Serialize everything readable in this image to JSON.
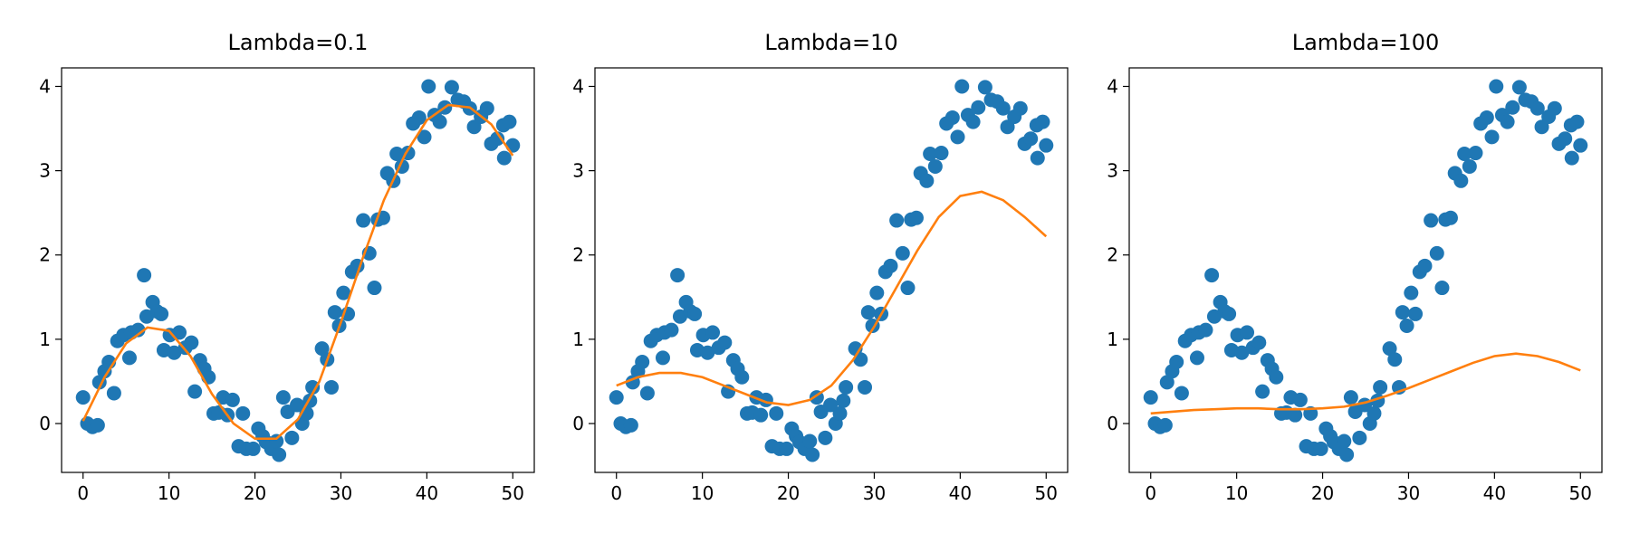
{
  "chart_data": [
    {
      "type": "scatter",
      "title": "Lambda=0.1",
      "color": "#1f77b4",
      "line_color": "#ff7f0e",
      "x": [
        0,
        0.5,
        1.1,
        1.7,
        1.9,
        2.5,
        3,
        3.6,
        4,
        4.7,
        5.4,
        5.6,
        6.4,
        7.1,
        7.4,
        8.1,
        8.6,
        9.1,
        9.4,
        10.1,
        10.6,
        11.2,
        11.9,
        12.6,
        13,
        13.6,
        14.1,
        14.6,
        15.2,
        15.8,
        16.3,
        16.8,
        17.4,
        18.1,
        18.6,
        19,
        19.8,
        20.4,
        20.9,
        21.3,
        21.9,
        22.5,
        22.8,
        23.3,
        23.8,
        24.3,
        24.9,
        25.5,
        26,
        26.4,
        26.7,
        27.8,
        28.4,
        28.9,
        29.3,
        29.8,
        30.3,
        30.8,
        31.3,
        31.9,
        32.6,
        33.3,
        33.9,
        34.3,
        34.9,
        35.4,
        36.1,
        36.5,
        37.1,
        37.8,
        38.4,
        39.1,
        39.7,
        40.2,
        40.9,
        41.5,
        42.1,
        42.9,
        43.6,
        44.3,
        45,
        45.5,
        46.3,
        47,
        47.5,
        48.2,
        48.9,
        49,
        49.6,
        50
      ],
      "values": [
        0.31,
        0,
        -0.04,
        -0.02,
        0.49,
        0.62,
        0.73,
        0.36,
        0.98,
        1.05,
        0.78,
        1.08,
        1.11,
        1.76,
        1.27,
        1.44,
        1.33,
        1.3,
        0.87,
        1.05,
        0.84,
        1.08,
        0.9,
        0.96,
        0.38,
        0.75,
        0.65,
        0.55,
        0.12,
        0.13,
        0.31,
        0.1,
        0.28,
        -0.27,
        0.12,
        -0.3,
        -0.3,
        -0.06,
        -0.15,
        -0.22,
        -0.3,
        -0.21,
        -0.37,
        0.31,
        0.14,
        -0.17,
        0.22,
        0,
        0.12,
        0.27,
        0.43,
        0.89,
        0.76,
        0.43,
        1.32,
        1.16,
        1.55,
        1.3,
        1.8,
        1.87,
        2.41,
        2.02,
        1.61,
        2.42,
        2.44,
        2.97,
        2.88,
        3.2,
        3.05,
        3.21,
        3.56,
        3.63,
        3.4,
        4,
        3.66,
        3.58,
        3.75,
        3.99,
        3.84,
        3.82,
        3.74,
        3.52,
        3.64,
        3.74,
        3.32,
        3.38,
        3.54,
        3.15,
        3.58,
        3.3
      ],
      "line_x": [
        0,
        2.5,
        5,
        7.5,
        10,
        12.5,
        15,
        17.5,
        20,
        22.5,
        25,
        27.5,
        30,
        32.5,
        35,
        37.5,
        40,
        42.5,
        45,
        47.5,
        50
      ],
      "line_values": [
        0.03,
        0.55,
        0.95,
        1.14,
        1.1,
        0.8,
        0.35,
        0,
        -0.18,
        -0.18,
        0.05,
        0.5,
        1.2,
        1.95,
        2.65,
        3.2,
        3.6,
        3.78,
        3.75,
        3.55,
        3.18
      ],
      "xlim": [
        -2.5,
        52.5
      ],
      "ylim": [
        -0.58,
        4.22
      ],
      "xticks": [
        0,
        10,
        20,
        30,
        40,
        50
      ],
      "yticks": [
        0,
        1,
        2,
        3,
        4
      ]
    },
    {
      "type": "scatter",
      "title": "Lambda=10",
      "color": "#1f77b4",
      "line_color": "#ff7f0e",
      "x": [
        0,
        0.5,
        1.1,
        1.7,
        1.9,
        2.5,
        3,
        3.6,
        4,
        4.7,
        5.4,
        5.6,
        6.4,
        7.1,
        7.4,
        8.1,
        8.6,
        9.1,
        9.4,
        10.1,
        10.6,
        11.2,
        11.9,
        12.6,
        13,
        13.6,
        14.1,
        14.6,
        15.2,
        15.8,
        16.3,
        16.8,
        17.4,
        18.1,
        18.6,
        19,
        19.8,
        20.4,
        20.9,
        21.3,
        21.9,
        22.5,
        22.8,
        23.3,
        23.8,
        24.3,
        24.9,
        25.5,
        26,
        26.4,
        26.7,
        27.8,
        28.4,
        28.9,
        29.3,
        29.8,
        30.3,
        30.8,
        31.3,
        31.9,
        32.6,
        33.3,
        33.9,
        34.3,
        34.9,
        35.4,
        36.1,
        36.5,
        37.1,
        37.8,
        38.4,
        39.1,
        39.7,
        40.2,
        40.9,
        41.5,
        42.1,
        42.9,
        43.6,
        44.3,
        45,
        45.5,
        46.3,
        47,
        47.5,
        48.2,
        48.9,
        49,
        49.6,
        50
      ],
      "values": [
        0.31,
        0,
        -0.04,
        -0.02,
        0.49,
        0.62,
        0.73,
        0.36,
        0.98,
        1.05,
        0.78,
        1.08,
        1.11,
        1.76,
        1.27,
        1.44,
        1.33,
        1.3,
        0.87,
        1.05,
        0.84,
        1.08,
        0.9,
        0.96,
        0.38,
        0.75,
        0.65,
        0.55,
        0.12,
        0.13,
        0.31,
        0.1,
        0.28,
        -0.27,
        0.12,
        -0.3,
        -0.3,
        -0.06,
        -0.15,
        -0.22,
        -0.3,
        -0.21,
        -0.37,
        0.31,
        0.14,
        -0.17,
        0.22,
        0,
        0.12,
        0.27,
        0.43,
        0.89,
        0.76,
        0.43,
        1.32,
        1.16,
        1.55,
        1.3,
        1.8,
        1.87,
        2.41,
        2.02,
        1.61,
        2.42,
        2.44,
        2.97,
        2.88,
        3.2,
        3.05,
        3.21,
        3.56,
        3.63,
        3.4,
        4,
        3.66,
        3.58,
        3.75,
        3.99,
        3.84,
        3.82,
        3.74,
        3.52,
        3.64,
        3.74,
        3.32,
        3.38,
        3.54,
        3.15,
        3.58,
        3.3
      ],
      "line_x": [
        0,
        2.5,
        5,
        7.5,
        10,
        12.5,
        15,
        17.5,
        20,
        22.5,
        25,
        27.5,
        30,
        32.5,
        35,
        37.5,
        40,
        42.5,
        45,
        47.5,
        50
      ],
      "line_values": [
        0.45,
        0.55,
        0.6,
        0.6,
        0.55,
        0.45,
        0.35,
        0.25,
        0.22,
        0.28,
        0.45,
        0.75,
        1.15,
        1.6,
        2.05,
        2.45,
        2.7,
        2.75,
        2.65,
        2.45,
        2.22
      ],
      "xlim": [
        -2.5,
        52.5
      ],
      "ylim": [
        -0.58,
        4.22
      ],
      "xticks": [
        0,
        10,
        20,
        30,
        40,
        50
      ],
      "yticks": [
        0,
        1,
        2,
        3,
        4
      ]
    },
    {
      "type": "scatter",
      "title": "Lambda=100",
      "color": "#1f77b4",
      "line_color": "#ff7f0e",
      "x": [
        0,
        0.5,
        1.1,
        1.7,
        1.9,
        2.5,
        3,
        3.6,
        4,
        4.7,
        5.4,
        5.6,
        6.4,
        7.1,
        7.4,
        8.1,
        8.6,
        9.1,
        9.4,
        10.1,
        10.6,
        11.2,
        11.9,
        12.6,
        13,
        13.6,
        14.1,
        14.6,
        15.2,
        15.8,
        16.3,
        16.8,
        17.4,
        18.1,
        18.6,
        19,
        19.8,
        20.4,
        20.9,
        21.3,
        21.9,
        22.5,
        22.8,
        23.3,
        23.8,
        24.3,
        24.9,
        25.5,
        26,
        26.4,
        26.7,
        27.8,
        28.4,
        28.9,
        29.3,
        29.8,
        30.3,
        30.8,
        31.3,
        31.9,
        32.6,
        33.3,
        33.9,
        34.3,
        34.9,
        35.4,
        36.1,
        36.5,
        37.1,
        37.8,
        38.4,
        39.1,
        39.7,
        40.2,
        40.9,
        41.5,
        42.1,
        42.9,
        43.6,
        44.3,
        45,
        45.5,
        46.3,
        47,
        47.5,
        48.2,
        48.9,
        49,
        49.6,
        50
      ],
      "values": [
        0.31,
        0,
        -0.04,
        -0.02,
        0.49,
        0.62,
        0.73,
        0.36,
        0.98,
        1.05,
        0.78,
        1.08,
        1.11,
        1.76,
        1.27,
        1.44,
        1.33,
        1.3,
        0.87,
        1.05,
        0.84,
        1.08,
        0.9,
        0.96,
        0.38,
        0.75,
        0.65,
        0.55,
        0.12,
        0.13,
        0.31,
        0.1,
        0.28,
        -0.27,
        0.12,
        -0.3,
        -0.3,
        -0.06,
        -0.15,
        -0.22,
        -0.3,
        -0.21,
        -0.37,
        0.31,
        0.14,
        -0.17,
        0.22,
        0,
        0.12,
        0.27,
        0.43,
        0.89,
        0.76,
        0.43,
        1.32,
        1.16,
        1.55,
        1.3,
        1.8,
        1.87,
        2.41,
        2.02,
        1.61,
        2.42,
        2.44,
        2.97,
        2.88,
        3.2,
        3.05,
        3.21,
        3.56,
        3.63,
        3.4,
        4,
        3.66,
        3.58,
        3.75,
        3.99,
        3.84,
        3.82,
        3.74,
        3.52,
        3.64,
        3.74,
        3.32,
        3.38,
        3.54,
        3.15,
        3.58,
        3.3
      ],
      "line_x": [
        0,
        2.5,
        5,
        7.5,
        10,
        12.5,
        15,
        17.5,
        20,
        22.5,
        25,
        27.5,
        30,
        32.5,
        35,
        37.5,
        40,
        42.5,
        45,
        47.5,
        50
      ],
      "line_values": [
        0.12,
        0.14,
        0.16,
        0.17,
        0.18,
        0.18,
        0.17,
        0.17,
        0.18,
        0.2,
        0.25,
        0.33,
        0.42,
        0.52,
        0.62,
        0.72,
        0.8,
        0.83,
        0.8,
        0.73,
        0.63
      ],
      "xlim": [
        -2.5,
        52.5
      ],
      "ylim": [
        -0.58,
        4.22
      ],
      "xticks": [
        0,
        10,
        20,
        30,
        40,
        50
      ],
      "yticks": [
        0,
        1,
        2,
        3,
        4
      ]
    }
  ]
}
